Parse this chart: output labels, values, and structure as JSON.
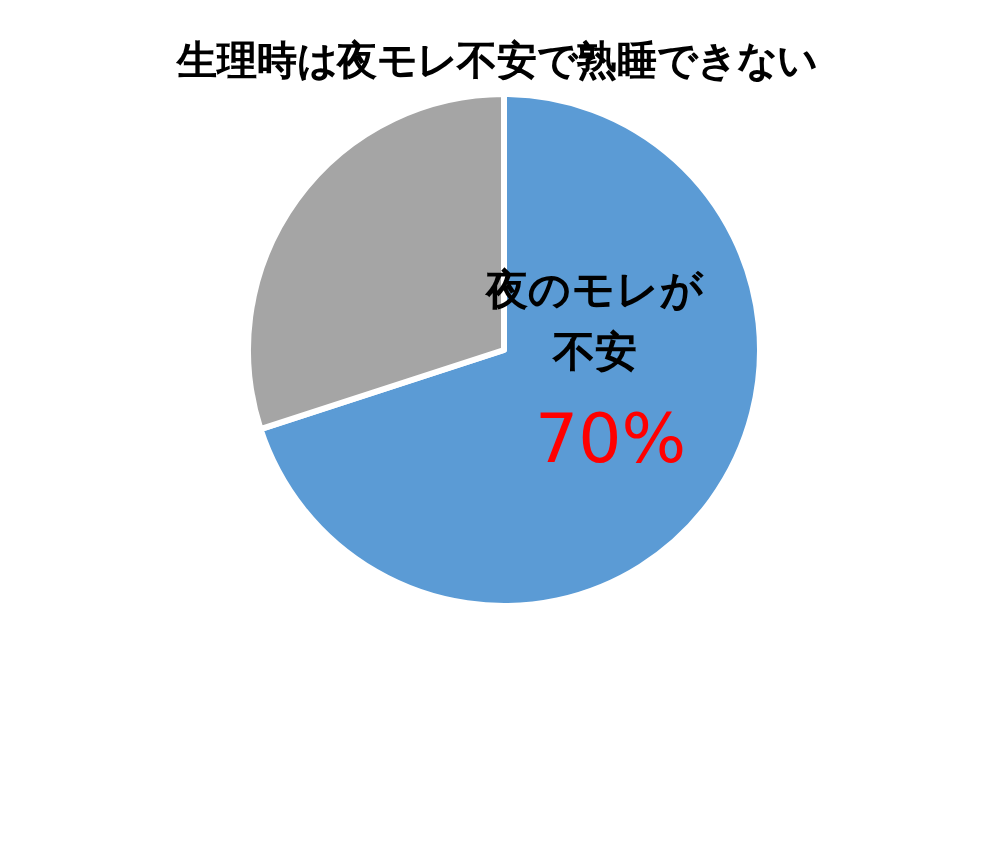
{
  "chart_data": {
    "type": "pie",
    "title": "生理時は夜モレ不安で熟睡できない",
    "categories": [
      "夜のモレが不安",
      null
    ],
    "values": [
      70,
      30
    ],
    "colors": [
      "#5b9bd5",
      "#a5a5a5"
    ],
    "value_labels": [
      "70%",
      null
    ]
  }
}
